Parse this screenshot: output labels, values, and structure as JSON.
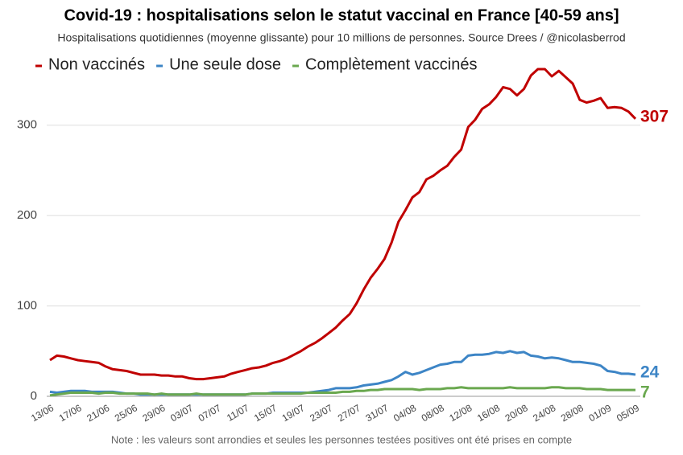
{
  "chart_data": {
    "type": "line",
    "title": "Covid-19 : hospitalisations selon le statut vaccinal en France [40-59 ans]",
    "subtitle": "Hospitalisations quotidiennes (moyenne glissante) pour 10 millions de personnes. Source Drees / @nicolasberrod",
    "note": "Note : les valeurs sont arrondies et seules les personnes testées positives ont été prises en compte",
    "categories": [
      "13/06",
      null,
      null,
      null,
      "17/06",
      null,
      null,
      null,
      "21/06",
      null,
      null,
      null,
      "25/06",
      null,
      null,
      null,
      "29/06",
      null,
      null,
      null,
      "03/07",
      null,
      null,
      null,
      "07/07",
      null,
      null,
      null,
      "11/07",
      null,
      null,
      null,
      "15/07",
      null,
      null,
      null,
      "19/07",
      null,
      null,
      null,
      "23/07",
      null,
      null,
      null,
      "27/07",
      null,
      null,
      null,
      "31/07",
      null,
      null,
      null,
      "04/08",
      null,
      null,
      null,
      "08/08",
      null,
      null,
      null,
      "12/08",
      null,
      null,
      null,
      "16/08",
      null,
      null,
      null,
      "20/08",
      null,
      null,
      null,
      "24/08",
      null,
      null,
      null,
      "28/08",
      null,
      null,
      null,
      "01/09",
      null,
      null,
      null,
      "05/09"
    ],
    "series": [
      {
        "name": "Non vaccinés",
        "color": "#c00000",
        "values": [
          40,
          45,
          44,
          42,
          40,
          39,
          38,
          37,
          33,
          30,
          29,
          28,
          26,
          24,
          24,
          24,
          23,
          23,
          22,
          22,
          20,
          19,
          19,
          20,
          21,
          22,
          25,
          27,
          29,
          31,
          32,
          34,
          37,
          39,
          42,
          46,
          50,
          55,
          59,
          64,
          70,
          76,
          84,
          91,
          103,
          118,
          131,
          141,
          152,
          170,
          193,
          206,
          220,
          226,
          240,
          244,
          250,
          255,
          265,
          273,
          298,
          306,
          318,
          323,
          331,
          342,
          340,
          333,
          340,
          355,
          362,
          362,
          354,
          360,
          353,
          346,
          328,
          325,
          327,
          330,
          319,
          320,
          319,
          315,
          307
        ]
      },
      {
        "name": "Une seule dose",
        "color": "#3d85c6",
        "values": [
          5,
          4,
          5,
          6,
          6,
          6,
          5,
          5,
          5,
          5,
          4,
          3,
          3,
          2,
          2,
          2,
          2,
          2,
          2,
          2,
          2,
          2,
          2,
          2,
          2,
          2,
          2,
          2,
          2,
          3,
          3,
          3,
          4,
          4,
          4,
          4,
          4,
          4,
          5,
          6,
          7,
          9,
          9,
          9,
          10,
          12,
          13,
          14,
          16,
          18,
          22,
          27,
          24,
          26,
          29,
          32,
          35,
          36,
          38,
          38,
          45,
          46,
          46,
          47,
          49,
          48,
          50,
          48,
          49,
          45,
          44,
          42,
          43,
          42,
          40,
          38,
          38,
          37,
          36,
          34,
          28,
          27,
          25,
          25,
          24
        ]
      },
      {
        "name": "Complètement vaccinés",
        "color": "#6aa84f",
        "values": [
          1,
          2,
          3,
          4,
          4,
          4,
          4,
          3,
          4,
          4,
          3,
          3,
          3,
          3,
          3,
          2,
          3,
          2,
          2,
          2,
          2,
          3,
          2,
          2,
          2,
          2,
          2,
          2,
          2,
          3,
          3,
          3,
          3,
          3,
          3,
          3,
          3,
          4,
          4,
          4,
          4,
          4,
          5,
          5,
          6,
          6,
          7,
          7,
          8,
          8,
          8,
          8,
          8,
          7,
          8,
          8,
          8,
          9,
          9,
          10,
          9,
          9,
          9,
          9,
          9,
          9,
          10,
          9,
          9,
          9,
          9,
          9,
          10,
          10,
          9,
          9,
          9,
          8,
          8,
          8,
          7,
          7,
          7,
          7,
          7
        ]
      }
    ],
    "ylim": [
      0,
      370
    ],
    "yticks": [
      0,
      100,
      200,
      300
    ],
    "grid": true
  }
}
